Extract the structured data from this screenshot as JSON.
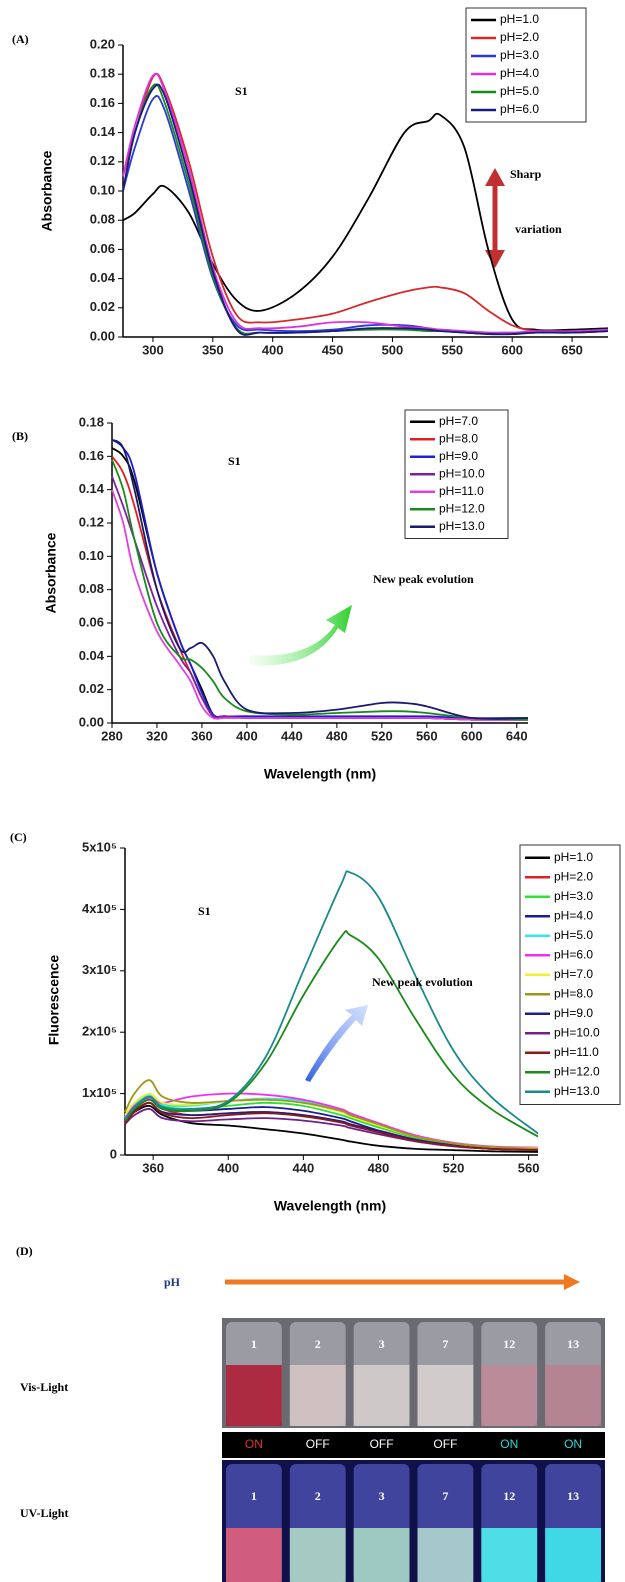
{
  "chart_data": [
    {
      "type": "line",
      "label": "(A)",
      "ylabel": "Absorbance",
      "annotations": [
        "S1",
        "Sharp",
        "variation"
      ],
      "x": [
        275,
        285,
        300,
        310,
        330,
        350,
        370,
        390,
        420,
        450,
        480,
        510,
        530,
        540,
        560,
        580,
        600,
        620,
        650,
        680
      ],
      "series": [
        {
          "name": "pH=1.0",
          "color": "#000000",
          "values": [
            0.08,
            0.085,
            0.098,
            0.103,
            0.085,
            0.05,
            0.025,
            0.018,
            0.03,
            0.055,
            0.095,
            0.14,
            0.148,
            0.152,
            0.13,
            0.06,
            0.012,
            0.005,
            0.005,
            0.006
          ]
        },
        {
          "name": "pH=2.0",
          "color": "#d42a2a",
          "values": [
            0.11,
            0.14,
            0.178,
            0.17,
            0.12,
            0.055,
            0.015,
            0.01,
            0.012,
            0.016,
            0.024,
            0.031,
            0.034,
            0.034,
            0.03,
            0.018,
            0.008,
            0.004,
            0.003,
            0.004
          ]
        },
        {
          "name": "pH=3.0",
          "color": "#2a3ad8",
          "values": [
            0.1,
            0.13,
            0.163,
            0.155,
            0.1,
            0.04,
            0.008,
            0.005,
            0.004,
            0.005,
            0.008,
            0.008,
            0.006,
            0.005,
            0.004,
            0.003,
            0.003,
            0.003,
            0.004,
            0.005
          ]
        },
        {
          "name": "pH=4.0",
          "color": "#e030e0",
          "values": [
            0.11,
            0.145,
            0.179,
            0.168,
            0.115,
            0.048,
            0.01,
            0.006,
            0.007,
            0.01,
            0.01,
            0.007,
            0.006,
            0.005,
            0.004,
            0.003,
            0.003,
            0.004,
            0.004,
            0.005
          ]
        },
        {
          "name": "pH=5.0",
          "color": "#1a8a1a",
          "values": [
            0.1,
            0.14,
            0.172,
            0.16,
            0.105,
            0.042,
            0.006,
            0.003,
            0.003,
            0.004,
            0.005,
            0.005,
            0.004,
            0.004,
            0.003,
            0.002,
            0.002,
            0.003,
            0.003,
            0.004
          ]
        },
        {
          "name": "pH=6.0",
          "color": "#1a1a80",
          "values": [
            0.1,
            0.14,
            0.17,
            0.165,
            0.11,
            0.045,
            0.005,
            0.003,
            0.003,
            0.004,
            0.006,
            0.006,
            0.005,
            0.004,
            0.003,
            0.002,
            0.002,
            0.003,
            0.003,
            0.004
          ]
        }
      ],
      "xlim": [
        275,
        680
      ],
      "xticks": [
        300,
        350,
        400,
        450,
        500,
        550,
        600,
        650
      ],
      "ylim": [
        0,
        0.2
      ],
      "yticks": [
        {
          "value": 0,
          "label": "0.00"
        },
        {
          "value": 0.02,
          "label": "0.02"
        },
        {
          "value": 0.04,
          "label": "0.04"
        },
        {
          "value": 0.06,
          "label": "0.06"
        },
        {
          "value": 0.08,
          "label": "0.08"
        },
        {
          "value": 0.1,
          "label": "0.10"
        },
        {
          "value": 0.12,
          "label": "0.12"
        },
        {
          "value": 0.14,
          "label": "0.14"
        },
        {
          "value": 0.16,
          "label": "0.16"
        },
        {
          "value": 0.18,
          "label": "0.18"
        },
        {
          "value": 0.2,
          "label": "0.20"
        }
      ],
      "legend": "upper right"
    },
    {
      "type": "line",
      "label": "(B)",
      "xlabel": "Wavelength (nm)",
      "ylabel": "Absorbance",
      "annotations": [
        "S1",
        "New peak evolution"
      ],
      "x": [
        280,
        290,
        300,
        320,
        340,
        350,
        360,
        370,
        380,
        400,
        440,
        480,
        520,
        540,
        560,
        600,
        650
      ],
      "series": [
        {
          "name": "pH=7.0",
          "color": "#000000",
          "values": [
            0.165,
            0.16,
            0.145,
            0.09,
            0.05,
            0.035,
            0.02,
            0.005,
            0.004,
            0.004,
            0.003,
            0.003,
            0.003,
            0.003,
            0.003,
            0.002,
            0.002
          ]
        },
        {
          "name": "pH=8.0",
          "color": "#e02020",
          "values": [
            0.16,
            0.15,
            0.13,
            0.08,
            0.045,
            0.03,
            0.015,
            0.004,
            0.004,
            0.003,
            0.003,
            0.003,
            0.003,
            0.003,
            0.003,
            0.002,
            0.002
          ]
        },
        {
          "name": "pH=9.0",
          "color": "#2020d0",
          "values": [
            0.17,
            0.165,
            0.15,
            0.09,
            0.05,
            0.035,
            0.018,
            0.005,
            0.004,
            0.004,
            0.004,
            0.004,
            0.004,
            0.004,
            0.004,
            0.003,
            0.003
          ]
        },
        {
          "name": "pH=10.0",
          "color": "#8020a0",
          "values": [
            0.148,
            0.13,
            0.11,
            0.07,
            0.04,
            0.03,
            0.015,
            0.004,
            0.004,
            0.003,
            0.003,
            0.003,
            0.003,
            0.003,
            0.003,
            0.002,
            0.002
          ]
        },
        {
          "name": "pH=11.0",
          "color": "#e040e0",
          "values": [
            0.14,
            0.12,
            0.09,
            0.055,
            0.035,
            0.025,
            0.01,
            0.003,
            0.003,
            0.003,
            0.003,
            0.003,
            0.003,
            0.003,
            0.003,
            0.002,
            0.002
          ]
        },
        {
          "name": "pH=12.0",
          "color": "#1a8a1a",
          "values": [
            0.158,
            0.14,
            0.11,
            0.06,
            0.04,
            0.038,
            0.033,
            0.025,
            0.015,
            0.007,
            0.005,
            0.006,
            0.007,
            0.007,
            0.006,
            0.003,
            0.002
          ]
        },
        {
          "name": "pH=13.0",
          "color": "#1a1a70",
          "values": [
            0.17,
            0.165,
            0.14,
            0.08,
            0.045,
            0.045,
            0.048,
            0.04,
            0.025,
            0.008,
            0.006,
            0.008,
            0.012,
            0.012,
            0.01,
            0.003,
            0.003
          ]
        }
      ],
      "xlim": [
        280,
        650
      ],
      "xticks": [
        280,
        320,
        360,
        400,
        440,
        480,
        520,
        560,
        600,
        640
      ],
      "ylim": [
        0,
        0.18
      ],
      "yticks": [
        {
          "value": 0,
          "label": "0.00"
        },
        {
          "value": 0.02,
          "label": "0.02"
        },
        {
          "value": 0.04,
          "label": "0.04"
        },
        {
          "value": 0.06,
          "label": "0.06"
        },
        {
          "value": 0.08,
          "label": "0.08"
        },
        {
          "value": 0.1,
          "label": "0.10"
        },
        {
          "value": 0.12,
          "label": "0.12"
        },
        {
          "value": 0.14,
          "label": "0.14"
        },
        {
          "value": 0.16,
          "label": "0.16"
        },
        {
          "value": 0.18,
          "label": "0.18"
        }
      ],
      "legend": "upper right"
    },
    {
      "type": "line",
      "label": "(C)",
      "xlabel": "Wavelength (nm)",
      "ylabel": "Fluorescence",
      "annotations": [
        "S1",
        "New peak evolution"
      ],
      "x": [
        345,
        350,
        358,
        365,
        380,
        400,
        420,
        440,
        460,
        465,
        480,
        500,
        520,
        540,
        565
      ],
      "series": [
        {
          "name": "pH=1.0",
          "color": "#000000",
          "values": [
            55000,
            70000,
            80000,
            65000,
            52000,
            48000,
            42000,
            35000,
            25000,
            22000,
            15000,
            10000,
            8000,
            6000,
            5000
          ]
        },
        {
          "name": "pH=2.0",
          "color": "#e02020",
          "values": [
            55000,
            75000,
            90000,
            75000,
            65000,
            68000,
            70000,
            65000,
            55000,
            50000,
            40000,
            25000,
            15000,
            10000,
            8000
          ]
        },
        {
          "name": "pH=3.0",
          "color": "#30e030",
          "values": [
            60000,
            80000,
            95000,
            80000,
            75000,
            80000,
            85000,
            80000,
            65000,
            60000,
            45000,
            28000,
            18000,
            12000,
            10000
          ]
        },
        {
          "name": "pH=4.0",
          "color": "#1a1aa0",
          "values": [
            60000,
            80000,
            95000,
            78000,
            72000,
            75000,
            78000,
            72000,
            60000,
            55000,
            40000,
            25000,
            16000,
            11000,
            9000
          ]
        },
        {
          "name": "pH=5.0",
          "color": "#30e8e8",
          "values": [
            62000,
            82000,
            97000,
            82000,
            80000,
            88000,
            92000,
            88000,
            72000,
            65000,
            50000,
            30000,
            19000,
            13000,
            10000
          ]
        },
        {
          "name": "pH=6.0",
          "color": "#f030f0",
          "values": [
            60000,
            80000,
            93000,
            85000,
            95000,
            100000,
            98000,
            90000,
            75000,
            68000,
            52000,
            32000,
            20000,
            14000,
            12000
          ]
        },
        {
          "name": "pH=7.0",
          "color": "#f0f030",
          "values": [
            65000,
            85000,
            100000,
            85000,
            82000,
            88000,
            90000,
            85000,
            70000,
            63000,
            48000,
            30000,
            19000,
            13000,
            11000
          ]
        },
        {
          "name": "pH=8.0",
          "color": "#9a9a1a",
          "values": [
            70000,
            100000,
            122000,
            95000,
            85000,
            88000,
            90000,
            85000,
            72000,
            65000,
            50000,
            30000,
            19000,
            13000,
            10000
          ]
        },
        {
          "name": "pH=9.0",
          "color": "#202080",
          "values": [
            55000,
            72000,
            85000,
            70000,
            65000,
            68000,
            70000,
            65000,
            55000,
            50000,
            38000,
            24000,
            15000,
            10000,
            8000
          ]
        },
        {
          "name": "pH=10.0",
          "color": "#70208a",
          "values": [
            50000,
            65000,
            75000,
            60000,
            55000,
            58000,
            60000,
            56000,
            48000,
            44000,
            34000,
            22000,
            14000,
            10000,
            8000
          ]
        },
        {
          "name": "pH=11.0",
          "color": "#8a1a1a",
          "values": [
            52000,
            70000,
            85000,
            68000,
            60000,
            65000,
            68000,
            63000,
            53000,
            48000,
            37000,
            23000,
            15000,
            10000,
            8000
          ]
        },
        {
          "name": "pH=12.0",
          "color": "#1a8a1a",
          "values": [
            55000,
            75000,
            90000,
            75000,
            72000,
            85000,
            150000,
            260000,
            355000,
            358000,
            320000,
            220000,
            130000,
            75000,
            30000
          ]
        },
        {
          "name": "pH=13.0",
          "color": "#1a8a8a",
          "values": [
            58000,
            78000,
            95000,
            78000,
            75000,
            88000,
            160000,
            300000,
            440000,
            460000,
            420000,
            290000,
            170000,
            95000,
            35000
          ]
        }
      ],
      "xlim": [
        345,
        565
      ],
      "xticks": [
        360,
        400,
        440,
        480,
        520,
        560
      ],
      "ylim": [
        0,
        500000
      ],
      "yticks": [
        0,
        {
          "value": 100000,
          "label": "1x10⁵"
        },
        {
          "value": 200000,
          "label": "2x10⁵"
        },
        {
          "value": 300000,
          "label": "3x10⁵"
        },
        {
          "value": 400000,
          "label": "4x10⁵"
        },
        {
          "value": 500000,
          "label": "5x10⁵"
        }
      ],
      "legend": "upper right"
    }
  ],
  "panel_d": {
    "label": "(D)",
    "axis_label": "pH",
    "rows": [
      "Vis-Light",
      "UV-Light"
    ],
    "vials": [
      "1",
      "2",
      "3",
      "7",
      "12",
      "13"
    ],
    "states": [
      "ON",
      "OFF",
      "OFF",
      "OFF",
      "ON",
      "ON"
    ],
    "state_colors": [
      "#e03030",
      "#ffffff",
      "#ffffff",
      "#ffffff",
      "#30d8d8",
      "#30d8d8"
    ],
    "vis_colors": [
      "#b01830",
      "#d8c8c8",
      "#d8d0d0",
      "#dcd4d4",
      "#c08898",
      "#b88090"
    ],
    "uv_colors": [
      "#e0607a",
      "#b0d8c8",
      "#a8d8c8",
      "#b0d8d0",
      "#50f0f0",
      "#40e8f0"
    ]
  }
}
